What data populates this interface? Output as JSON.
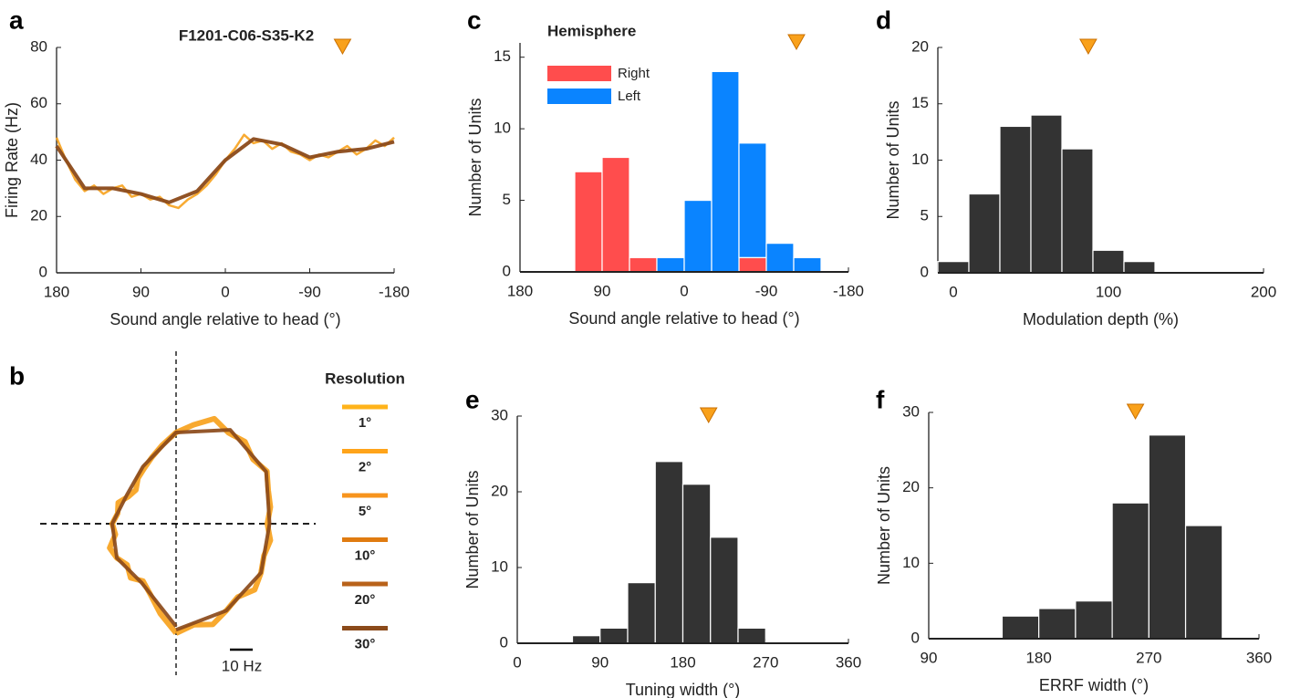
{
  "chart_data": [
    {
      "type": "line",
      "panel": "a",
      "title": "F1201-C06-S35-K2",
      "x_label": "Sound angle relative to head (°)",
      "y_label": "Firing Rate (Hz)",
      "xlim": [
        180,
        -180
      ],
      "xticks": [
        180,
        90,
        0,
        -90,
        -180
      ],
      "ylim": [
        0,
        80
      ],
      "yticks": [
        0,
        20,
        40,
        60,
        80
      ],
      "marker_x": -125,
      "series": [
        {
          "color": "#f7a21d",
          "x": [
            180,
            170,
            160,
            150,
            140,
            130,
            120,
            110,
            100,
            90,
            80,
            70,
            60,
            50,
            40,
            30,
            20,
            10,
            0,
            -10,
            -20,
            -30,
            -40,
            -50,
            -60,
            -70,
            -80,
            -90,
            -100,
            -110,
            -120,
            -130,
            -140,
            -150,
            -160,
            -170,
            -180
          ],
          "values": [
            48,
            40,
            33,
            29,
            31,
            28,
            30,
            31,
            27,
            28,
            26,
            27,
            24,
            23,
            26,
            28,
            31,
            35,
            40,
            44,
            49,
            46,
            47,
            44,
            46,
            43,
            42,
            40,
            42,
            41,
            43,
            45,
            42,
            44,
            47,
            45,
            48
          ]
        },
        {
          "color": "#8b4a1a",
          "x": [
            180,
            150,
            120,
            90,
            60,
            30,
            0,
            -30,
            -60,
            -90,
            -120,
            -150,
            -180
          ],
          "values": [
            45,
            30,
            30,
            28,
            25,
            29,
            40,
            47.5,
            45.6,
            41,
            43,
            44,
            46.5
          ]
        }
      ]
    },
    {
      "type": "polar",
      "panel": "b",
      "legend_title": "Resolution",
      "scalebar": {
        "value": 10,
        "label": "10 Hz"
      },
      "legend": [
        {
          "label": "1°",
          "color": "#ffb31a"
        },
        {
          "label": "2°",
          "color": "#ffa41a"
        },
        {
          "label": "5°",
          "color": "#f7941d"
        },
        {
          "label": "10°",
          "color": "#e07b10"
        },
        {
          "label": "20°",
          "color": "#b8621a"
        },
        {
          "label": "30°",
          "color": "#8b4a1a"
        }
      ],
      "series": [
        {
          "color": "#f7a21d",
          "x": [
            180,
            170,
            160,
            150,
            140,
            130,
            120,
            110,
            100,
            90,
            80,
            70,
            60,
            50,
            40,
            30,
            20,
            10,
            0,
            -10,
            -20,
            -30,
            -40,
            -50,
            -60,
            -70,
            -80,
            -90,
            -100,
            -110,
            -120,
            -130,
            -140,
            -150,
            -160,
            -170,
            -180
          ],
          "values": [
            48,
            40,
            33,
            29,
            31,
            28,
            30,
            31,
            27,
            28,
            26,
            27,
            24,
            23,
            26,
            28,
            31,
            35,
            40,
            44,
            49,
            46,
            47,
            44,
            46,
            43,
            42,
            40,
            42,
            41,
            43,
            45,
            42,
            44,
            47,
            45,
            48
          ]
        },
        {
          "color": "#8b4a1a",
          "x": [
            180,
            150,
            120,
            90,
            60,
            30,
            0,
            -30,
            -60,
            -90,
            -120,
            -150,
            -180
          ],
          "values": [
            45,
            30,
            30,
            28,
            25,
            29,
            40,
            47.5,
            45.6,
            41,
            43,
            44,
            46.5
          ]
        }
      ]
    },
    {
      "type": "histogram",
      "panel": "c",
      "x_label": "Sound angle relative to head (°)",
      "y_label": "Number of Units",
      "xlim": [
        180,
        -180
      ],
      "xticks": [
        180,
        90,
        0,
        -90,
        -180
      ],
      "ylim": [
        0,
        16
      ],
      "yticks": [
        0,
        5,
        10,
        15
      ],
      "marker_x": -123,
      "legend_title": "Hemisphere",
      "bins": [
        120,
        90,
        60,
        30,
        0,
        -30,
        -60,
        -90,
        -120,
        -150
      ],
      "series": [
        {
          "name": "Right",
          "color": "#ff4d4d",
          "values": [
            7,
            8,
            1,
            0,
            0,
            0,
            1,
            0,
            0
          ]
        },
        {
          "name": "Left",
          "color": "#0a84ff",
          "values": [
            0,
            0,
            0,
            1,
            5,
            14,
            8,
            2,
            1
          ]
        }
      ]
    },
    {
      "type": "histogram",
      "panel": "d",
      "x_label": "Modulation depth (%)",
      "y_label": "Number of Units",
      "xlim": [
        -10,
        200
      ],
      "xticks": [
        0,
        100,
        200
      ],
      "ylim": [
        0,
        20
      ],
      "yticks": [
        0,
        5,
        10,
        15,
        20
      ],
      "marker_x": 87,
      "bins": [
        -10,
        10,
        30,
        50,
        70,
        90,
        110,
        130
      ],
      "series": [
        {
          "color": "#333333",
          "values": [
            1,
            7,
            13,
            14,
            11,
            2,
            1
          ]
        }
      ]
    },
    {
      "type": "histogram",
      "panel": "e",
      "x_label": "Tuning width (°)",
      "y_label": "Number of Units",
      "xlim": [
        0,
        360
      ],
      "xticks": [
        0,
        90,
        180,
        270,
        360
      ],
      "ylim": [
        0,
        30
      ],
      "yticks": [
        0,
        10,
        20,
        30
      ],
      "marker_x": 208,
      "bins": [
        60,
        90,
        120,
        150,
        180,
        210,
        240,
        270
      ],
      "series": [
        {
          "color": "#333333",
          "values": [
            1,
            2,
            8,
            24,
            21,
            14,
            2
          ]
        }
      ]
    },
    {
      "type": "histogram",
      "panel": "f",
      "x_label": "ERRF width (°)",
      "y_label": "Number of Units",
      "xlim": [
        90,
        360
      ],
      "xticks": [
        90,
        180,
        270,
        360
      ],
      "ylim": [
        0,
        30
      ],
      "yticks": [
        0,
        10,
        20,
        30
      ],
      "marker_x": 259,
      "bins": [
        150,
        180,
        210,
        240,
        270,
        300,
        330
      ],
      "series": [
        {
          "color": "#333333",
          "values": [
            3,
            4,
            5,
            18,
            27,
            15
          ]
        }
      ]
    }
  ]
}
